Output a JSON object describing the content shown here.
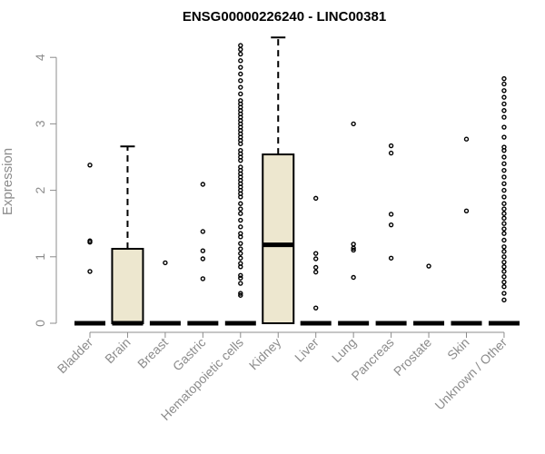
{
  "chart_data": {
    "type": "boxplot",
    "title": "ENSG00000226240 - LINC00381",
    "xlabel": "",
    "ylabel": "Expression",
    "ylim": [
      0,
      4.3
    ],
    "yticks": [
      0,
      1,
      2,
      3,
      4
    ],
    "grid": false,
    "colors": {
      "box_fill": "#ede7cf",
      "stroke": "#000000",
      "axis": "#8c8c8c",
      "title": "#000000"
    },
    "categories": [
      "Bladder",
      "Brain",
      "Breast",
      "Gastric",
      "Hematopoietic cells",
      "Kidney",
      "Liver",
      "Lung",
      "Pancreas",
      "Prostate",
      "Skin",
      "Unknown / Other"
    ],
    "boxes": [
      {
        "name": "Bladder",
        "q1": 0,
        "median": 0,
        "q3": 0,
        "whisker_low": 0,
        "whisker_high": 0,
        "outliers": [
          0.78,
          1.22,
          1.24,
          2.38
        ]
      },
      {
        "name": "Brain",
        "q1": 0,
        "median": 0,
        "q3": 1.12,
        "whisker_low": 0,
        "whisker_high": 2.66,
        "outliers": []
      },
      {
        "name": "Breast",
        "q1": 0,
        "median": 0,
        "q3": 0,
        "whisker_low": 0,
        "whisker_high": 0,
        "outliers": [
          0.91
        ]
      },
      {
        "name": "Gastric",
        "q1": 0,
        "median": 0,
        "q3": 0,
        "whisker_low": 0,
        "whisker_high": 0,
        "outliers": [
          0.67,
          0.97,
          1.09,
          1.38,
          2.09
        ]
      },
      {
        "name": "Hematopoietic cells",
        "q1": 0,
        "median": 0,
        "q3": 0,
        "whisker_low": 0,
        "whisker_high": 0,
        "outliers": [
          0.42,
          0.45,
          0.6,
          0.68,
          0.72,
          0.85,
          0.9,
          0.98,
          1.05,
          1.12,
          1.2,
          1.3,
          1.35,
          1.45,
          1.55,
          1.65,
          1.72,
          1.8,
          1.9,
          1.95,
          2.0,
          2.05,
          2.1,
          2.15,
          2.2,
          2.25,
          2.3,
          2.35,
          2.45,
          2.5,
          2.55,
          2.6,
          2.7,
          2.75,
          2.8,
          2.85,
          2.9,
          2.95,
          3.0,
          3.05,
          3.1,
          3.15,
          3.2,
          3.25,
          3.3,
          3.35,
          3.45,
          3.55,
          3.65,
          3.75,
          3.85,
          3.95,
          4.05,
          4.12,
          4.18
        ]
      },
      {
        "name": "Kidney",
        "q1": 0,
        "median": 1.18,
        "q3": 2.54,
        "whisker_low": 0,
        "whisker_high": 4.3,
        "outliers": []
      },
      {
        "name": "Liver",
        "q1": 0,
        "median": 0,
        "q3": 0,
        "whisker_low": 0,
        "whisker_high": 0,
        "outliers": [
          0.23,
          0.77,
          0.84,
          0.97,
          1.05,
          1.88
        ]
      },
      {
        "name": "Lung",
        "q1": 0,
        "median": 0,
        "q3": 0,
        "whisker_low": 0,
        "whisker_high": 0,
        "outliers": [
          0.69,
          1.1,
          1.13,
          1.19,
          3.0
        ]
      },
      {
        "name": "Pancreas",
        "q1": 0,
        "median": 0,
        "q3": 0,
        "whisker_low": 0,
        "whisker_high": 0,
        "outliers": [
          0.98,
          1.48,
          1.64,
          2.56,
          2.67
        ]
      },
      {
        "name": "Prostate",
        "q1": 0,
        "median": 0,
        "q3": 0,
        "whisker_low": 0,
        "whisker_high": 0,
        "outliers": [
          0.86
        ]
      },
      {
        "name": "Skin",
        "q1": 0,
        "median": 0,
        "q3": 0,
        "whisker_low": 0,
        "whisker_high": 0,
        "outliers": [
          1.69,
          2.77
        ]
      },
      {
        "name": "Unknown / Other",
        "q1": 0,
        "median": 0,
        "q3": 0,
        "whisker_low": 0,
        "whisker_high": 0,
        "outliers": [
          0.35,
          0.45,
          0.55,
          0.62,
          0.7,
          0.78,
          0.85,
          0.92,
          1.0,
          1.08,
          1.15,
          1.25,
          1.35,
          1.42,
          1.5,
          1.58,
          1.65,
          1.72,
          1.8,
          1.9,
          2.0,
          2.1,
          2.2,
          2.3,
          2.4,
          2.5,
          2.6,
          2.65,
          2.8,
          2.95,
          3.1,
          3.2,
          3.3,
          3.4,
          3.5,
          3.6,
          3.68
        ]
      }
    ]
  }
}
